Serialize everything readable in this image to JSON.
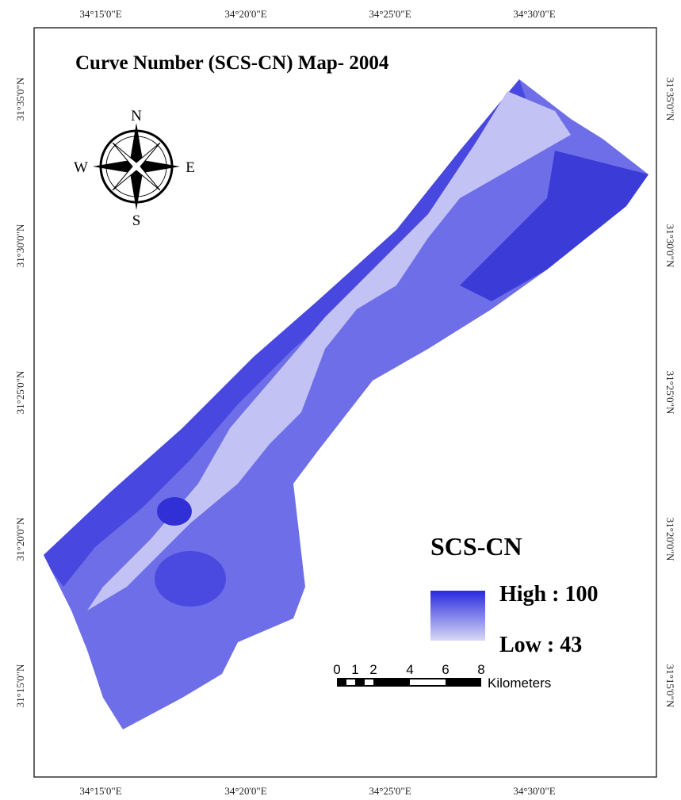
{
  "title": "Curve Number (SCS-CN) Map- 2004",
  "longitude_labels_top": [
    "34°15'0\"E",
    "34°20'0\"E",
    "34°25'0\"E",
    "34°30'0\"E"
  ],
  "longitude_labels_bottom": [
    "34°15'0\"E",
    "34°20'0\"E",
    "34°25'0\"E",
    "34°30'0\"E"
  ],
  "latitude_labels_left": [
    "31°35'0\"N",
    "31°30'0\"N",
    "31°25'0\"N",
    "31°20'0\"N",
    "31°15'0\"N"
  ],
  "latitude_labels_right": [
    "31°35'0\"N",
    "31°30'0\"N",
    "31°25'0\"N",
    "31°20'0\"N",
    "31°15'0\"N"
  ],
  "compass": {
    "north": "N",
    "south": "S",
    "east": "E",
    "west": "W"
  },
  "legend": {
    "title": "SCS-CN",
    "high": "High : 100",
    "low": "Low : 43"
  },
  "scale_bar": {
    "ticks": [
      "0",
      "1",
      "2",
      "4",
      "6",
      "8"
    ],
    "unit": "Kilometers"
  }
}
